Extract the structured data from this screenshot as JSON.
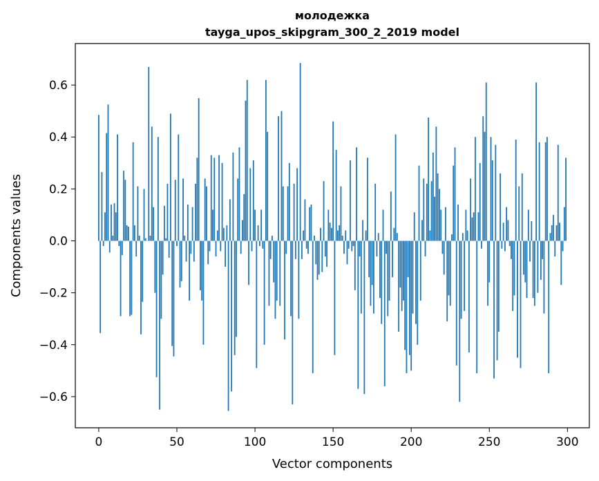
{
  "chart_data": {
    "type": "bar",
    "title_line1": "молодежка",
    "title_line2": "tayga_upos_skipgram_300_2_2019 model",
    "xlabel": "Vector components",
    "ylabel": "Components values",
    "xlim": [
      -15,
      314
    ],
    "ylim": [
      -0.72,
      0.76
    ],
    "xticks": [
      0,
      50,
      100,
      150,
      200,
      250,
      300
    ],
    "yticks": [
      -0.6,
      -0.4,
      -0.2,
      0.0,
      0.2,
      0.4,
      0.6
    ],
    "xtick_labels": [
      "0",
      "50",
      "100",
      "150",
      "200",
      "250",
      "300"
    ],
    "ytick_labels": [
      "−0.6",
      "−0.4",
      "−0.2",
      "0.0",
      "0.2",
      "0.4",
      "0.6"
    ],
    "bar_color": "#1f77b4",
    "values": [
      0.485,
      -0.355,
      0.265,
      -0.02,
      0.11,
      0.415,
      0.525,
      -0.045,
      0.14,
      0.02,
      0.145,
      0.11,
      0.41,
      -0.02,
      -0.29,
      -0.055,
      0.27,
      0.235,
      0.06,
      0.055,
      -0.29,
      -0.285,
      0.38,
      0.06,
      -0.06,
      0.21,
      0.02,
      -0.36,
      -0.235,
      0.2,
      0.01,
      0.0,
      0.67,
      0.02,
      0.44,
      0.13,
      -0.2,
      -0.525,
      0.4,
      -0.65,
      -0.3,
      -0.13,
      0.135,
      0.01,
      0.22,
      -0.065,
      0.49,
      -0.405,
      -0.445,
      0.235,
      -0.02,
      0.41,
      -0.18,
      -0.155,
      0.24,
      0.02,
      -0.08,
      0.14,
      -0.23,
      -0.05,
      0.13,
      -0.08,
      0.22,
      0.32,
      0.55,
      -0.19,
      -0.23,
      -0.4,
      0.24,
      0.21,
      -0.09,
      -0.04,
      0.33,
      0.12,
      0.32,
      -0.06,
      0.04,
      0.33,
      -0.04,
      0.3,
      0.05,
      -0.1,
      0.06,
      -0.655,
      0.16,
      -0.58,
      0.34,
      -0.44,
      -0.37,
      0.24,
      0.36,
      -0.05,
      0.08,
      0.18,
      0.54,
      0.62,
      -0.17,
      0.28,
      -0.04,
      0.31,
      0.12,
      -0.49,
      0.06,
      -0.02,
      0.12,
      -0.03,
      -0.4,
      0.62,
      0.42,
      -0.25,
      -0.07,
      0.02,
      -0.16,
      -0.3,
      -0.23,
      0.48,
      -0.25,
      0.5,
      0.21,
      -0.38,
      -0.05,
      0.21,
      0.3,
      -0.29,
      -0.63,
      0.22,
      -0.07,
      0.28,
      -0.3,
      0.685,
      -0.07,
      0.04,
      0.16,
      -0.03,
      -0.05,
      0.13,
      0.14,
      -0.51,
      0.02,
      -0.09,
      -0.15,
      -0.13,
      0.05,
      -0.12,
      0.23,
      -0.06,
      -0.1,
      0.12,
      0.07,
      0.05,
      0.46,
      -0.44,
      0.35,
      0.04,
      0.06,
      0.21,
      0.02,
      -0.05,
      0.04,
      -0.09,
      -0.03,
      0.31,
      -0.04,
      -0.02,
      -0.19,
      0.36,
      -0.57,
      -0.06,
      -0.28,
      0.08,
      -0.59,
      0.04,
      0.32,
      -0.14,
      -0.25,
      -0.17,
      -0.28,
      0.22,
      -0.06,
      0.03,
      -0.22,
      -0.32,
      0.12,
      -0.56,
      -0.05,
      -0.29,
      -0.23,
      0.19,
      -0.14,
      0.05,
      0.41,
      0.03,
      -0.35,
      -0.18,
      -0.27,
      -0.23,
      -0.42,
      -0.51,
      -0.14,
      -0.44,
      -0.5,
      -0.28,
      0.11,
      -0.32,
      -0.4,
      0.29,
      -0.23,
      0.08,
      0.24,
      -0.06,
      0.22,
      0.475,
      0.04,
      0.23,
      0.34,
      0.17,
      0.44,
      0.26,
      0.2,
      0.12,
      -0.05,
      -0.13,
      0.13,
      -0.31,
      -0.21,
      -0.25,
      0.025,
      0.29,
      0.36,
      -0.48,
      0.14,
      -0.62,
      -0.3,
      0.03,
      -0.27,
      0.12,
      0.04,
      -0.43,
      0.24,
      0.09,
      0.11,
      0.4,
      -0.51,
      0.11,
      0.3,
      -0.03,
      0.48,
      0.42,
      0.61,
      -0.25,
      -0.16,
      0.4,
      0.31,
      -0.53,
      0.37,
      -0.46,
      -0.35,
      0.26,
      -0.03,
      0.07,
      -0.04,
      0.13,
      0.08,
      -0.02,
      -0.07,
      -0.27,
      -0.21,
      0.39,
      -0.45,
      0.21,
      -0.49,
      0.26,
      -0.13,
      -0.16,
      -0.22,
      0.12,
      -0.08,
      0.076,
      -0.22,
      -0.25,
      0.61,
      -0.2,
      0.38,
      -0.15,
      -0.07,
      -0.28,
      0.38,
      0.4,
      -0.51,
      0.03,
      0.06,
      0.1,
      -0.06,
      0.06,
      0.37,
      0.07,
      -0.17,
      -0.04,
      0.13,
      0.32
    ]
  }
}
